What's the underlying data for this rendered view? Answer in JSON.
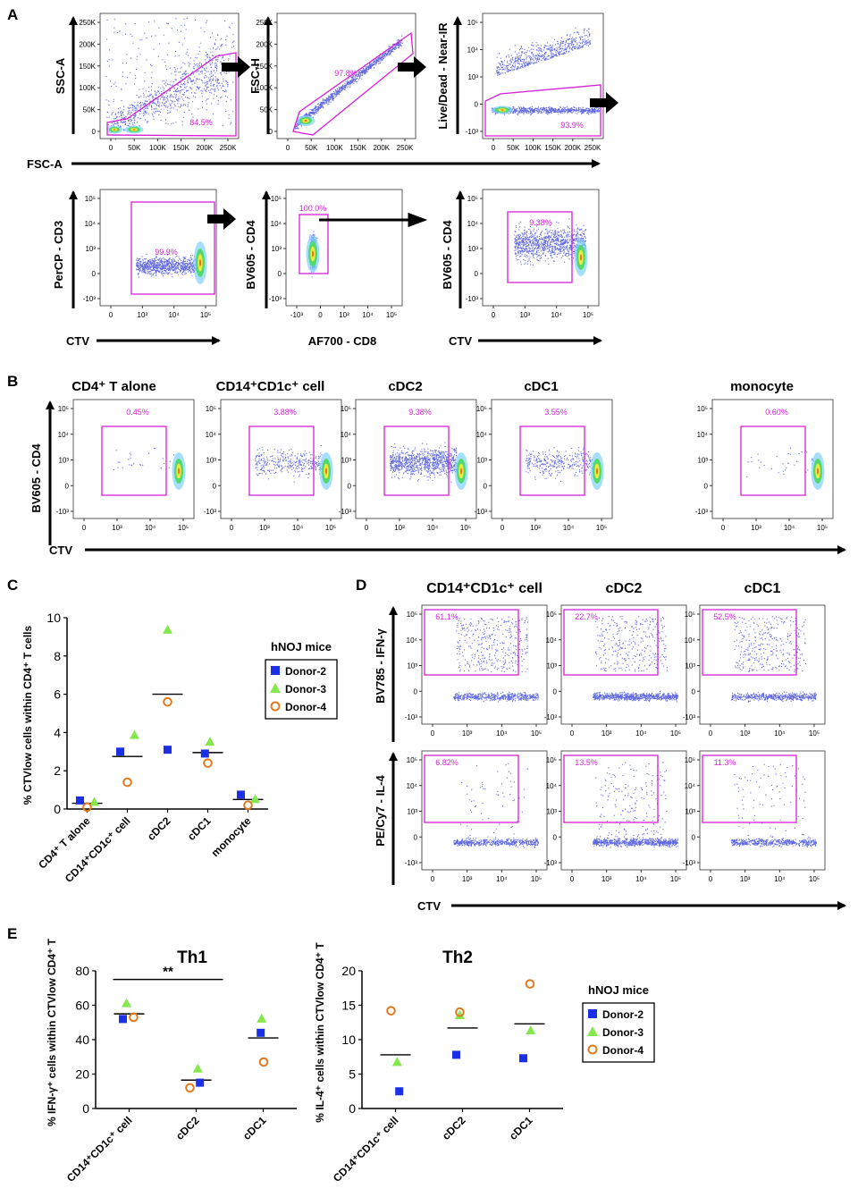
{
  "colors": {
    "gate": "#d61fd6",
    "dot": "#2a35d6",
    "donor2": "#1b2fe6",
    "donor3": "#84e84c",
    "donor4": "#e07a1e"
  },
  "panelA": {
    "letter": "A",
    "plots": [
      {
        "xlabel": "FSC-A",
        "ylabel": "SSC-A",
        "pct": "84.5%",
        "xticks": [
          "0",
          "50K",
          "100K",
          "150K",
          "200K",
          "250K"
        ],
        "yticks": [
          "0",
          "50K",
          "100K",
          "150K",
          "200K",
          "250K"
        ]
      },
      {
        "xlabel": "",
        "ylabel": "FSC-H",
        "pct": "97.8%",
        "xticks": [
          "0",
          "50K",
          "100K",
          "150K",
          "200K",
          "250K"
        ],
        "yticks": [
          "0",
          "50K",
          "100K",
          "150K",
          "200K",
          "250K"
        ]
      },
      {
        "xlabel": "",
        "ylabel": "Live/Dead - Near-IR",
        "pct": "93.9%",
        "xticks": [
          "0",
          "50K",
          "100K",
          "150K",
          "200K",
          "250K"
        ],
        "yticks": [
          "-10³",
          "0",
          "10³",
          "10⁴",
          "10⁵"
        ]
      },
      {
        "xlabel": "CTV",
        "ylabel": "PerCP - CD3",
        "pct": "99.9%",
        "xticks": [
          "0",
          "10³",
          "10⁴",
          "10⁵"
        ],
        "yticks": [
          "-10³",
          "0",
          "10³",
          "10⁴",
          "10⁵"
        ]
      },
      {
        "xlabel": "AF700 - CD8",
        "ylabel": "BV605 - CD4",
        "pct": "100.0%",
        "xticks": [
          "-10³",
          "0",
          "10³",
          "10⁴",
          "10⁵"
        ],
        "yticks": [
          "-10³",
          "0",
          "10³",
          "10⁴",
          "10⁵"
        ]
      },
      {
        "xlabel": "CTV",
        "ylabel": "BV605 - CD4",
        "pct": "9.38%",
        "xticks": [
          "0",
          "10³",
          "10⁴",
          "10⁵"
        ],
        "yticks": [
          "-10³",
          "0",
          "10³",
          "10⁴",
          "10⁵"
        ]
      }
    ]
  },
  "panelB": {
    "letter": "B",
    "ylabel": "BV605 - CD4",
    "xlabel": "CTV",
    "titles": [
      "CD4⁺ T alone",
      "CD14⁺CD1c⁺ cell",
      "cDC2",
      "cDC1",
      "monocyte"
    ],
    "pcts": [
      "0.45%",
      "3.88%",
      "9.38%",
      "3.55%",
      "0.60%"
    ],
    "xticks": [
      "0",
      "10³",
      "10⁴",
      "10⁵"
    ],
    "yticks": [
      "-10³",
      "0",
      "10³",
      "10⁴",
      "10⁵"
    ]
  },
  "panelD": {
    "letter": "D",
    "titles": [
      "CD14⁺CD1c⁺ cell",
      "cDC2",
      "cDC1"
    ],
    "ylabels": [
      "BV785 - IFN-γ",
      "PE/Cy7 - IL-4"
    ],
    "xlabel": "CTV",
    "pcts": [
      [
        "61.1%",
        "22.7%",
        "52.5%"
      ],
      [
        "6.82%",
        "13.5%",
        "11.3%"
      ]
    ],
    "xticks": [
      "0",
      "10³",
      "10⁴",
      "10⁵"
    ],
    "yticks": [
      "-10³",
      "0",
      "10³",
      "10⁴",
      "10⁵"
    ]
  },
  "legend": {
    "title": "hNOJ mice",
    "items": [
      "Donor-2",
      "Donor-3",
      "Donor-4"
    ]
  },
  "chart_data": [
    {
      "panel": "C",
      "type": "scatter",
      "title": "",
      "ylabel": "% CTVlow cells within CD4⁺ T cells",
      "ylim": [
        0,
        10
      ],
      "yticks": [
        "0",
        "2",
        "4",
        "6",
        "8",
        "10"
      ],
      "categories": [
        "CD4⁺ T alone",
        "CD14⁺CD1c⁺ cell",
        "cDC2",
        "cDC1",
        "monocyte"
      ],
      "series": [
        {
          "name": "Donor-2",
          "values": [
            0.45,
            3.0,
            3.1,
            2.9,
            0.75
          ]
        },
        {
          "name": "Donor-3",
          "values": [
            0.35,
            3.85,
            9.35,
            3.5,
            0.5
          ]
        },
        {
          "name": "Donor-4",
          "values": [
            0.1,
            1.4,
            5.6,
            2.4,
            0.2
          ]
        }
      ],
      "means": [
        0.3,
        2.75,
        6.0,
        2.95,
        0.5
      ]
    },
    {
      "panel": "E",
      "type": "scatter",
      "title": "Th1",
      "ylabel": "% IFN-γ⁺ cells within CTVlow CD4⁺ T",
      "ylim": [
        0,
        80
      ],
      "yticks": [
        "0",
        "20",
        "40",
        "60",
        "80"
      ],
      "categories": [
        "CD14⁺CD1c⁺ cell",
        "cDC2",
        "cDC1"
      ],
      "series": [
        {
          "name": "Donor-2",
          "values": [
            52,
            15,
            44
          ]
        },
        {
          "name": "Donor-3",
          "values": [
            61,
            23,
            52
          ]
        },
        {
          "name": "Donor-4",
          "values": [
            53,
            12,
            27
          ]
        }
      ],
      "means": [
        55,
        16.5,
        41
      ],
      "annotation": "**"
    },
    {
      "panel": "E",
      "type": "scatter",
      "title": "Th2",
      "ylabel": "% IL-4⁺ cells within CTVlow CD4⁺ T",
      "ylim": [
        0,
        20
      ],
      "yticks": [
        "0",
        "5",
        "10",
        "15",
        "20"
      ],
      "categories": [
        "CD14⁺CD1c⁺ cell",
        "cDC2",
        "cDC1"
      ],
      "series": [
        {
          "name": "Donor-2",
          "values": [
            2.5,
            7.8,
            7.3
          ]
        },
        {
          "name": "Donor-3",
          "values": [
            6.7,
            13.5,
            11.3
          ]
        },
        {
          "name": "Donor-4",
          "values": [
            14.2,
            14.0,
            18.1
          ]
        }
      ],
      "means": [
        7.8,
        11.7,
        12.3
      ]
    }
  ],
  "panelLetters": {
    "C": "C",
    "E": "E"
  }
}
